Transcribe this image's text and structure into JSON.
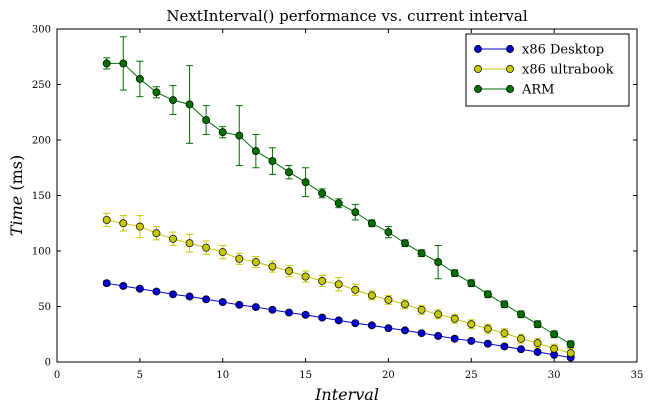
{
  "chart_data": {
    "type": "line",
    "title": "NextInterval() performance vs. current interval",
    "xlabel": "Interval",
    "ylabel_main": "Time",
    "ylabel_unit": " (ms)",
    "xlim": [
      0,
      35
    ],
    "ylim": [
      0,
      300
    ],
    "xticks": [
      "0",
      "5",
      "10",
      "15",
      "20",
      "25",
      "30",
      "35"
    ],
    "yticks": [
      "0",
      "50",
      "100",
      "150",
      "200",
      "250",
      "300"
    ],
    "grid": false,
    "legend_position": "top-right",
    "x": [
      3,
      4,
      5,
      6,
      7,
      8,
      9,
      10,
      11,
      12,
      13,
      14,
      15,
      16,
      17,
      18,
      19,
      20,
      21,
      22,
      23,
      24,
      25,
      26,
      27,
      28,
      29,
      30,
      31
    ],
    "series": [
      {
        "name": "x86 Desktop",
        "color": "#0000cc",
        "values": [
          71,
          68.5,
          66,
          63.5,
          61,
          59,
          56.5,
          54,
          51.5,
          49.5,
          47,
          44.5,
          42.5,
          40,
          37.5,
          35,
          33,
          30.5,
          28.5,
          26,
          23.5,
          21,
          19,
          16.5,
          14,
          11.5,
          9,
          6.5,
          4
        ],
        "errors": [
          2,
          1.5,
          1.5,
          1.5,
          1.5,
          1.5,
          1.5,
          1.5,
          1.5,
          1.5,
          1.5,
          1.5,
          1.5,
          1.5,
          1.5,
          1.5,
          1.5,
          1.5,
          1.5,
          1.5,
          1.5,
          1.5,
          1.5,
          1.5,
          1.5,
          1.5,
          1.5,
          1.5,
          1.5
        ]
      },
      {
        "name": "x86 ultrabook",
        "color": "#c8c800",
        "values": [
          128,
          125,
          122,
          116,
          111,
          107,
          103,
          99,
          93,
          90,
          86,
          82,
          77,
          73,
          70,
          65,
          60,
          56,
          52,
          47,
          43,
          39,
          34,
          30,
          26,
          21,
          17,
          12,
          8
        ],
        "errors": [
          6,
          7,
          10,
          6,
          6,
          8,
          6,
          6,
          5,
          5,
          5,
          5,
          5,
          5,
          6,
          5,
          4,
          4,
          4,
          4,
          4,
          4,
          4,
          4,
          4,
          4,
          4,
          4,
          4
        ]
      },
      {
        "name": "ARM",
        "color": "#007000",
        "values": [
          269,
          269,
          255,
          243,
          236,
          232,
          218,
          207,
          204,
          190,
          181,
          171,
          162,
          152,
          143,
          135,
          125,
          117,
          107,
          98,
          90,
          80,
          71,
          61,
          52,
          43,
          34,
          25,
          16
        ],
        "errors": [
          5,
          24,
          16,
          5,
          13,
          35,
          13,
          5,
          27,
          15,
          12,
          6,
          13,
          4,
          4,
          7,
          3,
          5,
          3,
          3,
          15,
          3,
          3,
          3,
          3,
          3,
          3,
          3,
          3
        ]
      }
    ]
  }
}
